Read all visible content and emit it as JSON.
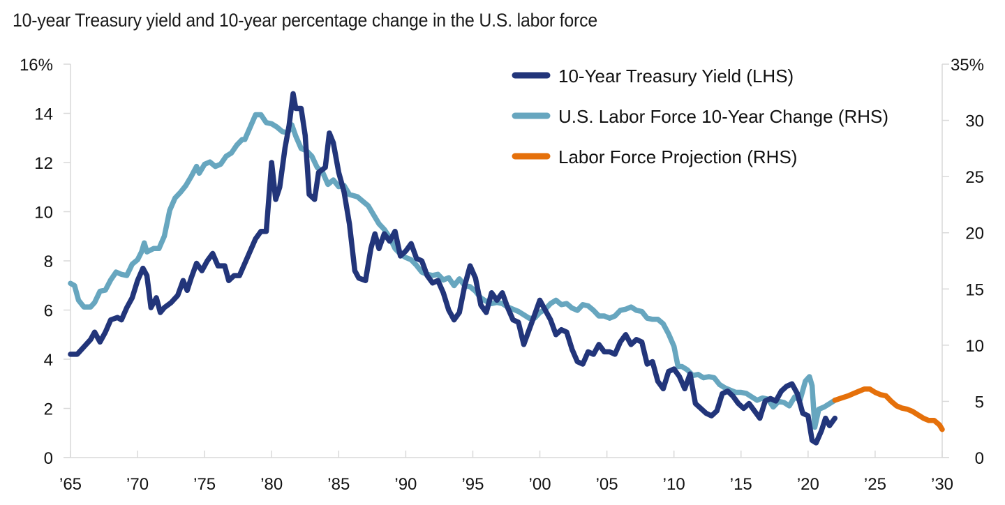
{
  "chart_data": {
    "type": "line",
    "title": "10-year Treasury yield and 10-year percentage change in the U.S. labor force",
    "xlabel": "",
    "ylabel_left": "",
    "ylabel_right": "",
    "x_range": [
      1965,
      2030
    ],
    "x_ticks": [
      1965,
      1970,
      1975,
      1980,
      1985,
      1990,
      1995,
      2000,
      2005,
      2010,
      2015,
      2020,
      2025,
      2030
    ],
    "x_tick_labels": [
      "’65",
      "’70",
      "’75",
      "’80",
      "’85",
      "’90",
      "’95",
      "’00",
      "’05",
      "’10",
      "’15",
      "’20",
      "’25",
      "’30"
    ],
    "y_left": {
      "range": [
        0,
        16
      ],
      "ticks": [
        0,
        2,
        4,
        6,
        8,
        10,
        12,
        14,
        16
      ],
      "tick_labels": [
        "0",
        "2",
        "4",
        "6",
        "8",
        "10",
        "12",
        "14",
        "16%"
      ]
    },
    "y_right": {
      "range": [
        0,
        35
      ],
      "ticks": [
        0,
        5,
        10,
        15,
        20,
        25,
        30,
        35
      ],
      "tick_labels": [
        "0",
        "5",
        "10",
        "15",
        "20",
        "25",
        "30",
        "35%"
      ]
    },
    "grid": false,
    "legend_position": "top-right",
    "series": [
      {
        "name": "10-Year Treasury Yield (LHS)",
        "axis": "left",
        "color": "#22357a",
        "x": [
          1965,
          1965.5,
          1966,
          1966.5,
          1966.8,
          1967.2,
          1967.6,
          1968,
          1968.5,
          1968.8,
          1969.2,
          1969.6,
          1970,
          1970.4,
          1970.7,
          1971,
          1971.4,
          1971.7,
          1972,
          1972.5,
          1973,
          1973.4,
          1973.7,
          1974,
          1974.4,
          1974.8,
          1975.2,
          1975.6,
          1976,
          1976.5,
          1976.8,
          1977.2,
          1977.6,
          1978,
          1978.4,
          1978.8,
          1979.2,
          1979.6,
          1980,
          1980.3,
          1980.6,
          1981,
          1981.3,
          1981.6,
          1981.8,
          1982.2,
          1982.5,
          1982.8,
          1983.2,
          1983.5,
          1984,
          1984.3,
          1984.6,
          1985,
          1985.4,
          1985.8,
          1986.2,
          1986.5,
          1987,
          1987.4,
          1987.7,
          1988,
          1988.4,
          1988.8,
          1989.2,
          1989.6,
          1990,
          1990.4,
          1990.8,
          1991.2,
          1991.6,
          1992,
          1992.4,
          1992.8,
          1993.2,
          1993.6,
          1994,
          1994.4,
          1994.8,
          1995.2,
          1995.6,
          1996,
          1996.4,
          1996.8,
          1997.2,
          1997.6,
          1998,
          1998.4,
          1998.8,
          1999.2,
          1999.6,
          2000,
          2000.4,
          2000.8,
          2001.2,
          2001.6,
          2002,
          2002.4,
          2002.8,
          2003.2,
          2003.6,
          2004,
          2004.4,
          2004.8,
          2005.2,
          2005.6,
          2006,
          2006.4,
          2006.8,
          2007.2,
          2007.6,
          2008,
          2008.4,
          2008.8,
          2009.2,
          2009.6,
          2010,
          2010.4,
          2010.8,
          2011.2,
          2011.6,
          2012,
          2012.4,
          2012.8,
          2013.2,
          2013.6,
          2014,
          2014.4,
          2014.8,
          2015.2,
          2015.6,
          2016,
          2016.4,
          2016.8,
          2017.2,
          2017.6,
          2018,
          2018.4,
          2018.8,
          2019.2,
          2019.6,
          2020,
          2020.3,
          2020.6,
          2021,
          2021.3,
          2021.6,
          2022
        ],
        "values": [
          4.2,
          4.2,
          4.5,
          4.8,
          5.1,
          4.7,
          5.1,
          5.6,
          5.7,
          5.6,
          6.1,
          6.5,
          7.2,
          7.7,
          7.4,
          6.1,
          6.5,
          5.9,
          6.1,
          6.3,
          6.6,
          7.2,
          6.8,
          7.3,
          7.9,
          7.6,
          8.0,
          8.3,
          7.8,
          7.8,
          7.2,
          7.4,
          7.4,
          7.9,
          8.4,
          8.9,
          9.2,
          9.2,
          12.0,
          10.5,
          11.0,
          12.6,
          13.5,
          14.8,
          14.2,
          14.2,
          13.1,
          10.7,
          10.5,
          11.6,
          11.8,
          13.2,
          12.8,
          11.6,
          10.8,
          9.5,
          7.6,
          7.3,
          7.2,
          8.5,
          9.1,
          8.5,
          9.1,
          8.8,
          9.2,
          8.2,
          8.4,
          8.7,
          8.1,
          8.0,
          7.4,
          7.1,
          7.2,
          6.7,
          6.0,
          5.6,
          5.9,
          7.0,
          7.8,
          7.3,
          6.2,
          5.9,
          6.7,
          6.4,
          6.7,
          6.1,
          5.6,
          5.5,
          4.6,
          5.2,
          5.8,
          6.4,
          6.0,
          5.6,
          5.0,
          5.2,
          5.1,
          4.4,
          3.9,
          3.8,
          4.3,
          4.2,
          4.6,
          4.3,
          4.3,
          4.2,
          4.7,
          5.0,
          4.6,
          4.8,
          4.7,
          3.8,
          3.9,
          3.1,
          2.8,
          3.5,
          3.6,
          3.3,
          2.8,
          3.4,
          2.2,
          2.0,
          1.8,
          1.7,
          1.9,
          2.6,
          2.7,
          2.5,
          2.2,
          2.0,
          2.2,
          1.9,
          1.6,
          2.3,
          2.4,
          2.3,
          2.7,
          2.9,
          3.0,
          2.6,
          1.8,
          1.7,
          0.7,
          0.6,
          1.1,
          1.6,
          1.3,
          1.6
        ]
      },
      {
        "name": "U.S. Labor Force 10-Year Change (RHS)",
        "axis": "right",
        "color": "#67a6bf",
        "x": [
          1965,
          1965.3,
          1965.6,
          1966,
          1966.5,
          1966.8,
          1967.2,
          1967.6,
          1968,
          1968.4,
          1968.8,
          1969.2,
          1969.6,
          1970,
          1970.3,
          1970.5,
          1970.7,
          1971.2,
          1971.6,
          1972,
          1972.4,
          1972.8,
          1973.2,
          1973.6,
          1974,
          1974.4,
          1974.6,
          1975,
          1975.4,
          1975.8,
          1976.2,
          1976.6,
          1977,
          1977.4,
          1977.8,
          1978,
          1978.4,
          1978.8,
          1979.2,
          1979.6,
          1980,
          1980.4,
          1980.8,
          1981.2,
          1981.5,
          1981.8,
          1982.2,
          1982.6,
          1983,
          1983.4,
          1983.8,
          1984.2,
          1984.6,
          1985,
          1985.4,
          1985.8,
          1986.4,
          1986.8,
          1987.2,
          1987.6,
          1988,
          1988.4,
          1988.8,
          1989.2,
          1989.6,
          1990,
          1990.4,
          1990.8,
          1991.2,
          1991.6,
          1992,
          1992.4,
          1992.8,
          1993.2,
          1993.6,
          1994,
          1994.4,
          1994.8,
          1995.2,
          1995.6,
          1996,
          1996.4,
          1996.8,
          1997.2,
          1997.6,
          1998,
          1998.4,
          1998.8,
          1999.2,
          1999.6,
          2000,
          2000.4,
          2000.8,
          2001.2,
          2001.6,
          2002,
          2002.4,
          2002.8,
          2003.2,
          2003.6,
          2004,
          2004.4,
          2004.8,
          2005.2,
          2005.6,
          2006,
          2006.4,
          2006.8,
          2007.2,
          2007.6,
          2008,
          2008.4,
          2008.8,
          2009.2,
          2009.6,
          2010,
          2010.3,
          2010.6,
          2011,
          2011.4,
          2011.8,
          2012.2,
          2012.6,
          2013,
          2013.4,
          2013.8,
          2014.2,
          2014.6,
          2015,
          2015.4,
          2015.8,
          2016.2,
          2016.6,
          2017,
          2017.4,
          2017.8,
          2018.2,
          2018.6,
          2019,
          2019.4,
          2019.8,
          2020.1,
          2020.3,
          2020.5,
          2020.8,
          2021.2,
          2021.6,
          2022
        ],
        "values": [
          15.5,
          15.3,
          14.0,
          13.4,
          13.4,
          13.8,
          14.8,
          14.9,
          15.8,
          16.5,
          16.3,
          16.2,
          17.2,
          17.6,
          18.3,
          19.1,
          18.3,
          18.6,
          18.6,
          19.7,
          22.0,
          23.1,
          23.6,
          24.2,
          25.0,
          25.9,
          25.3,
          26.1,
          26.3,
          25.9,
          26.1,
          26.8,
          27.1,
          27.8,
          28.3,
          28.3,
          29.4,
          30.5,
          30.5,
          29.8,
          29.7,
          29.4,
          29.0,
          28.9,
          29.6,
          28.6,
          27.5,
          27.3,
          26.8,
          25.8,
          25.4,
          24.3,
          24.7,
          24.1,
          24.2,
          23.4,
          23.2,
          22.8,
          22.4,
          21.6,
          20.8,
          20.3,
          19.6,
          18.6,
          18.1,
          17.8,
          17.6,
          17.1,
          16.5,
          16.3,
          16.2,
          16.3,
          15.8,
          16.0,
          15.3,
          15.9,
          15.3,
          15.2,
          14.8,
          14.2,
          13.9,
          13.7,
          13.8,
          13.7,
          13.4,
          13.2,
          13.0,
          12.7,
          12.4,
          12.4,
          12.9,
          13.2,
          13.7,
          14.0,
          13.6,
          13.7,
          13.3,
          13.1,
          13.6,
          13.5,
          13.1,
          12.6,
          12.6,
          12.4,
          12.6,
          13.1,
          13.2,
          13.4,
          13.1,
          13.0,
          12.4,
          12.3,
          12.3,
          11.9,
          11.0,
          9.9,
          8.1,
          8.1,
          7.8,
          7.3,
          7.4,
          7.1,
          7.2,
          7.1,
          6.5,
          6.2,
          6.0,
          5.8,
          5.8,
          5.7,
          5.4,
          5.1,
          5.3,
          5.2,
          4.5,
          5.0,
          4.9,
          4.6,
          5.4,
          5.1,
          6.8,
          7.2,
          6.4,
          2.7,
          4.3,
          4.5,
          4.8,
          5.1
        ]
      },
      {
        "name": "Labor Force Projection (RHS)",
        "axis": "right",
        "color": "#e5700a",
        "x": [
          2022,
          2022.5,
          2023,
          2023.4,
          2023.8,
          2024.2,
          2024.6,
          2025,
          2025.4,
          2025.8,
          2026.2,
          2026.6,
          2027,
          2027.4,
          2027.8,
          2028.2,
          2028.6,
          2029,
          2029.4,
          2029.8,
          2030
        ],
        "values": [
          5.1,
          5.3,
          5.5,
          5.7,
          5.9,
          6.1,
          6.1,
          5.8,
          5.6,
          5.5,
          5.0,
          4.6,
          4.4,
          4.3,
          4.1,
          3.8,
          3.5,
          3.3,
          3.3,
          2.9,
          2.5
        ]
      }
    ]
  }
}
